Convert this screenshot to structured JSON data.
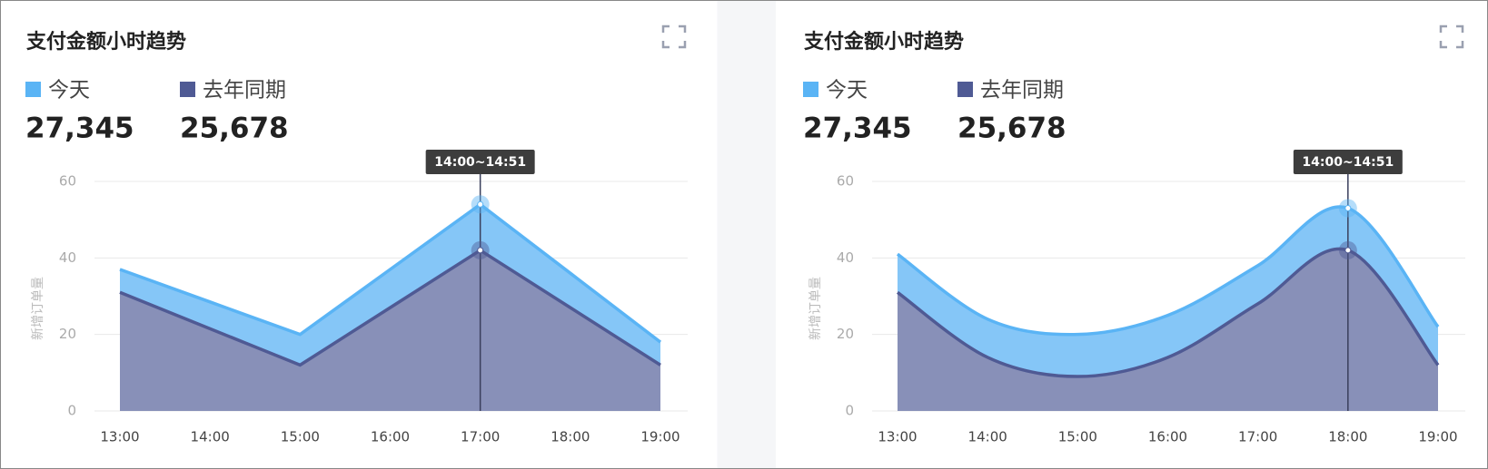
{
  "chart_data": [
    {
      "type": "area",
      "smooth": false,
      "title": "支付金额小时趋势",
      "y_label": "新增订单量",
      "categories": [
        "13:00",
        "14:00",
        "15:00",
        "16:00",
        "17:00",
        "18:00",
        "19:00"
      ],
      "series": [
        {
          "name": "今天",
          "total": "27,345",
          "color": "#5ab4f5",
          "fill": "#85c6f7",
          "values": [
            37,
            28.5,
            20,
            37,
            54,
            36,
            18
          ]
        },
        {
          "name": "去年同期",
          "total": "25,678",
          "color": "#4f5a94",
          "fill": "#8890b8",
          "values": [
            31,
            21.5,
            12,
            27,
            42,
            27,
            12
          ]
        }
      ],
      "ylim": [
        0,
        60
      ],
      "yticks": [
        0,
        20,
        40,
        60
      ],
      "grid": true,
      "highlight": "17:00",
      "tooltip": "14:00~14:51"
    },
    {
      "type": "area",
      "smooth": true,
      "title": "支付金额小时趋势",
      "y_label": "新增订单量",
      "categories": [
        "13:00",
        "14:00",
        "15:00",
        "16:00",
        "17:00",
        "18:00",
        "19:00"
      ],
      "series": [
        {
          "name": "今天",
          "total": "27,345",
          "color": "#5ab4f5",
          "fill": "#85c6f7",
          "values": [
            41,
            24,
            20,
            25,
            38,
            53,
            22
          ]
        },
        {
          "name": "去年同期",
          "total": "25,678",
          "color": "#4f5a94",
          "fill": "#8890b8",
          "values": [
            31,
            14,
            9,
            14,
            28,
            42,
            12
          ]
        }
      ],
      "ylim": [
        0,
        60
      ],
      "yticks": [
        0,
        20,
        40,
        60
      ],
      "grid": true,
      "highlight": "18:00",
      "tooltip": "14:00~14:51"
    }
  ]
}
